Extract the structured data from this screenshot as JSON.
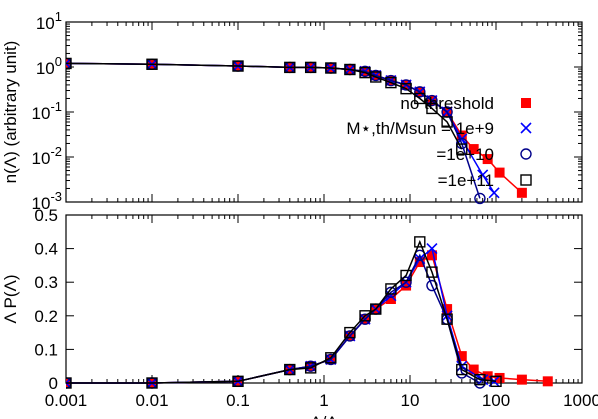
{
  "chart_data": [
    {
      "type": "line",
      "ylabel": "n(Λ) (arbitrary unit)",
      "xscale": "log",
      "yscale": "log",
      "xlim": [
        0.001,
        1000
      ],
      "ylim": [
        0.001,
        10
      ],
      "xticks": [
        "0.001",
        "0.01",
        "0.1",
        "1",
        "10",
        "100",
        "1000"
      ],
      "yticks": [
        {
          "base": "10",
          "exp": "-3",
          "value": 0.001
        },
        {
          "base": "10",
          "exp": "-2",
          "value": 0.01
        },
        {
          "base": "10",
          "exp": "-1",
          "value": 0.1
        },
        {
          "base": "10",
          "exp": "0",
          "value": 1
        },
        {
          "base": "10",
          "exp": "1",
          "value": 10
        }
      ],
      "legend": "right",
      "series": [
        {
          "name": "no threshold",
          "color": "#ff0000",
          "marker": "filled-square",
          "x": [
            0.001,
            0.01,
            0.1,
            0.4,
            0.7,
            1.2,
            2.0,
            3.0,
            4.0,
            6.0,
            9.0,
            13.0,
            18.0,
            27.0,
            40.0,
            55.0,
            80.0,
            110.0,
            200.0
          ],
          "y": [
            1.2,
            1.15,
            1.05,
            0.98,
            0.98,
            0.95,
            0.88,
            0.8,
            0.65,
            0.5,
            0.4,
            0.28,
            0.18,
            0.1,
            0.03,
            0.015,
            0.009,
            0.0045,
            0.0016
          ]
        },
        {
          "name": "M⋆,th/Msun = 1e+9",
          "color": "#0000ff",
          "marker": "cross",
          "x": [
            0.001,
            0.01,
            0.1,
            0.4,
            0.7,
            1.2,
            2.0,
            3.0,
            4.0,
            6.0,
            9.0,
            13.0,
            18.0,
            27.0,
            40.0,
            70.0,
            95.0
          ],
          "y": [
            1.2,
            1.15,
            1.05,
            0.98,
            0.98,
            0.95,
            0.88,
            0.8,
            0.65,
            0.5,
            0.4,
            0.28,
            0.18,
            0.1,
            0.025,
            0.004,
            0.0016
          ]
        },
        {
          "name": "=1e+10",
          "color": "#00008b",
          "marker": "open-circle",
          "x": [
            0.001,
            0.01,
            0.1,
            0.4,
            0.7,
            1.2,
            2.0,
            3.0,
            4.0,
            6.0,
            9.0,
            13.0,
            18.0,
            27.0,
            40.0,
            65.0
          ],
          "y": [
            1.2,
            1.15,
            1.05,
            0.98,
            0.98,
            0.95,
            0.88,
            0.8,
            0.65,
            0.5,
            0.4,
            0.28,
            0.18,
            0.1,
            0.02,
            0.0012
          ]
        },
        {
          "name": "=1e+11",
          "color": "#000000",
          "marker": "open-square",
          "x": [
            0.001,
            0.01,
            0.1,
            0.4,
            0.7,
            1.2,
            2.0,
            3.0,
            4.0,
            6.0,
            9.0,
            13.0,
            18.0,
            27.0,
            40.0
          ],
          "y": [
            1.2,
            1.15,
            1.05,
            0.98,
            0.98,
            0.95,
            0.88,
            0.75,
            0.6,
            0.45,
            0.33,
            0.2,
            0.12,
            0.06,
            0.015
          ]
        }
      ]
    },
    {
      "type": "line",
      "ylabel": "Λ P(Λ)",
      "xlabel": "Λ/Λ",
      "xscale": "log",
      "xlim": [
        0.001,
        1000
      ],
      "ylim": [
        0,
        0.5
      ],
      "xticks": [
        "0.001",
        "0.01",
        "0.1",
        "1",
        "10",
        "100",
        "1000"
      ],
      "yticks": [
        "0",
        "0.1",
        "0.2",
        "0.3",
        "0.4",
        "0.5"
      ],
      "series": [
        {
          "name": "no threshold",
          "color": "#ff0000",
          "marker": "filled-square",
          "x": [
            0.001,
            0.01,
            0.1,
            0.4,
            0.7,
            1.2,
            2.0,
            3.0,
            4.0,
            6.0,
            9.0,
            13.0,
            18.0,
            27.0,
            40.0,
            55.0,
            80.0,
            110.0,
            200.0,
            400.0
          ],
          "y": [
            0.0,
            0.0,
            0.005,
            0.04,
            0.05,
            0.07,
            0.14,
            0.19,
            0.22,
            0.25,
            0.29,
            0.36,
            0.38,
            0.22,
            0.08,
            0.04,
            0.02,
            0.015,
            0.01,
            0.005
          ]
        },
        {
          "name": "M⋆,th/Msun = 1e+9",
          "color": "#0000ff",
          "marker": "cross",
          "x": [
            0.001,
            0.01,
            0.1,
            0.4,
            0.7,
            1.2,
            2.0,
            3.0,
            4.0,
            6.0,
            9.0,
            13.0,
            18.0,
            27.0,
            40.0,
            70.0,
            95.0
          ],
          "y": [
            0.0,
            0.0,
            0.005,
            0.04,
            0.05,
            0.07,
            0.14,
            0.19,
            0.22,
            0.26,
            0.3,
            0.37,
            0.4,
            0.2,
            0.05,
            0.01,
            0.005
          ]
        },
        {
          "name": "=1e+10",
          "color": "#00008b",
          "marker": "open-circle",
          "x": [
            0.001,
            0.01,
            0.1,
            0.4,
            0.7,
            1.2,
            2.0,
            3.0,
            4.0,
            6.0,
            9.0,
            13.0,
            18.0,
            27.0,
            40.0,
            65.0
          ],
          "y": [
            0.0,
            0.0,
            0.005,
            0.04,
            0.05,
            0.07,
            0.14,
            0.19,
            0.22,
            0.27,
            0.3,
            0.38,
            0.29,
            0.19,
            0.03,
            0.0
          ]
        },
        {
          "name": "=1e+11",
          "color": "#000000",
          "marker": "open-square",
          "x": [
            0.001,
            0.01,
            0.1,
            0.4,
            0.7,
            1.2,
            2.0,
            3.0,
            4.0,
            6.0,
            9.0,
            13.0,
            18.0,
            27.0,
            40.0,
            65.0,
            100.0
          ],
          "y": [
            0.0,
            0.0,
            0.005,
            0.04,
            0.045,
            0.075,
            0.15,
            0.2,
            0.22,
            0.28,
            0.32,
            0.42,
            0.33,
            0.19,
            0.04,
            0.01,
            0.005
          ]
        }
      ]
    }
  ]
}
